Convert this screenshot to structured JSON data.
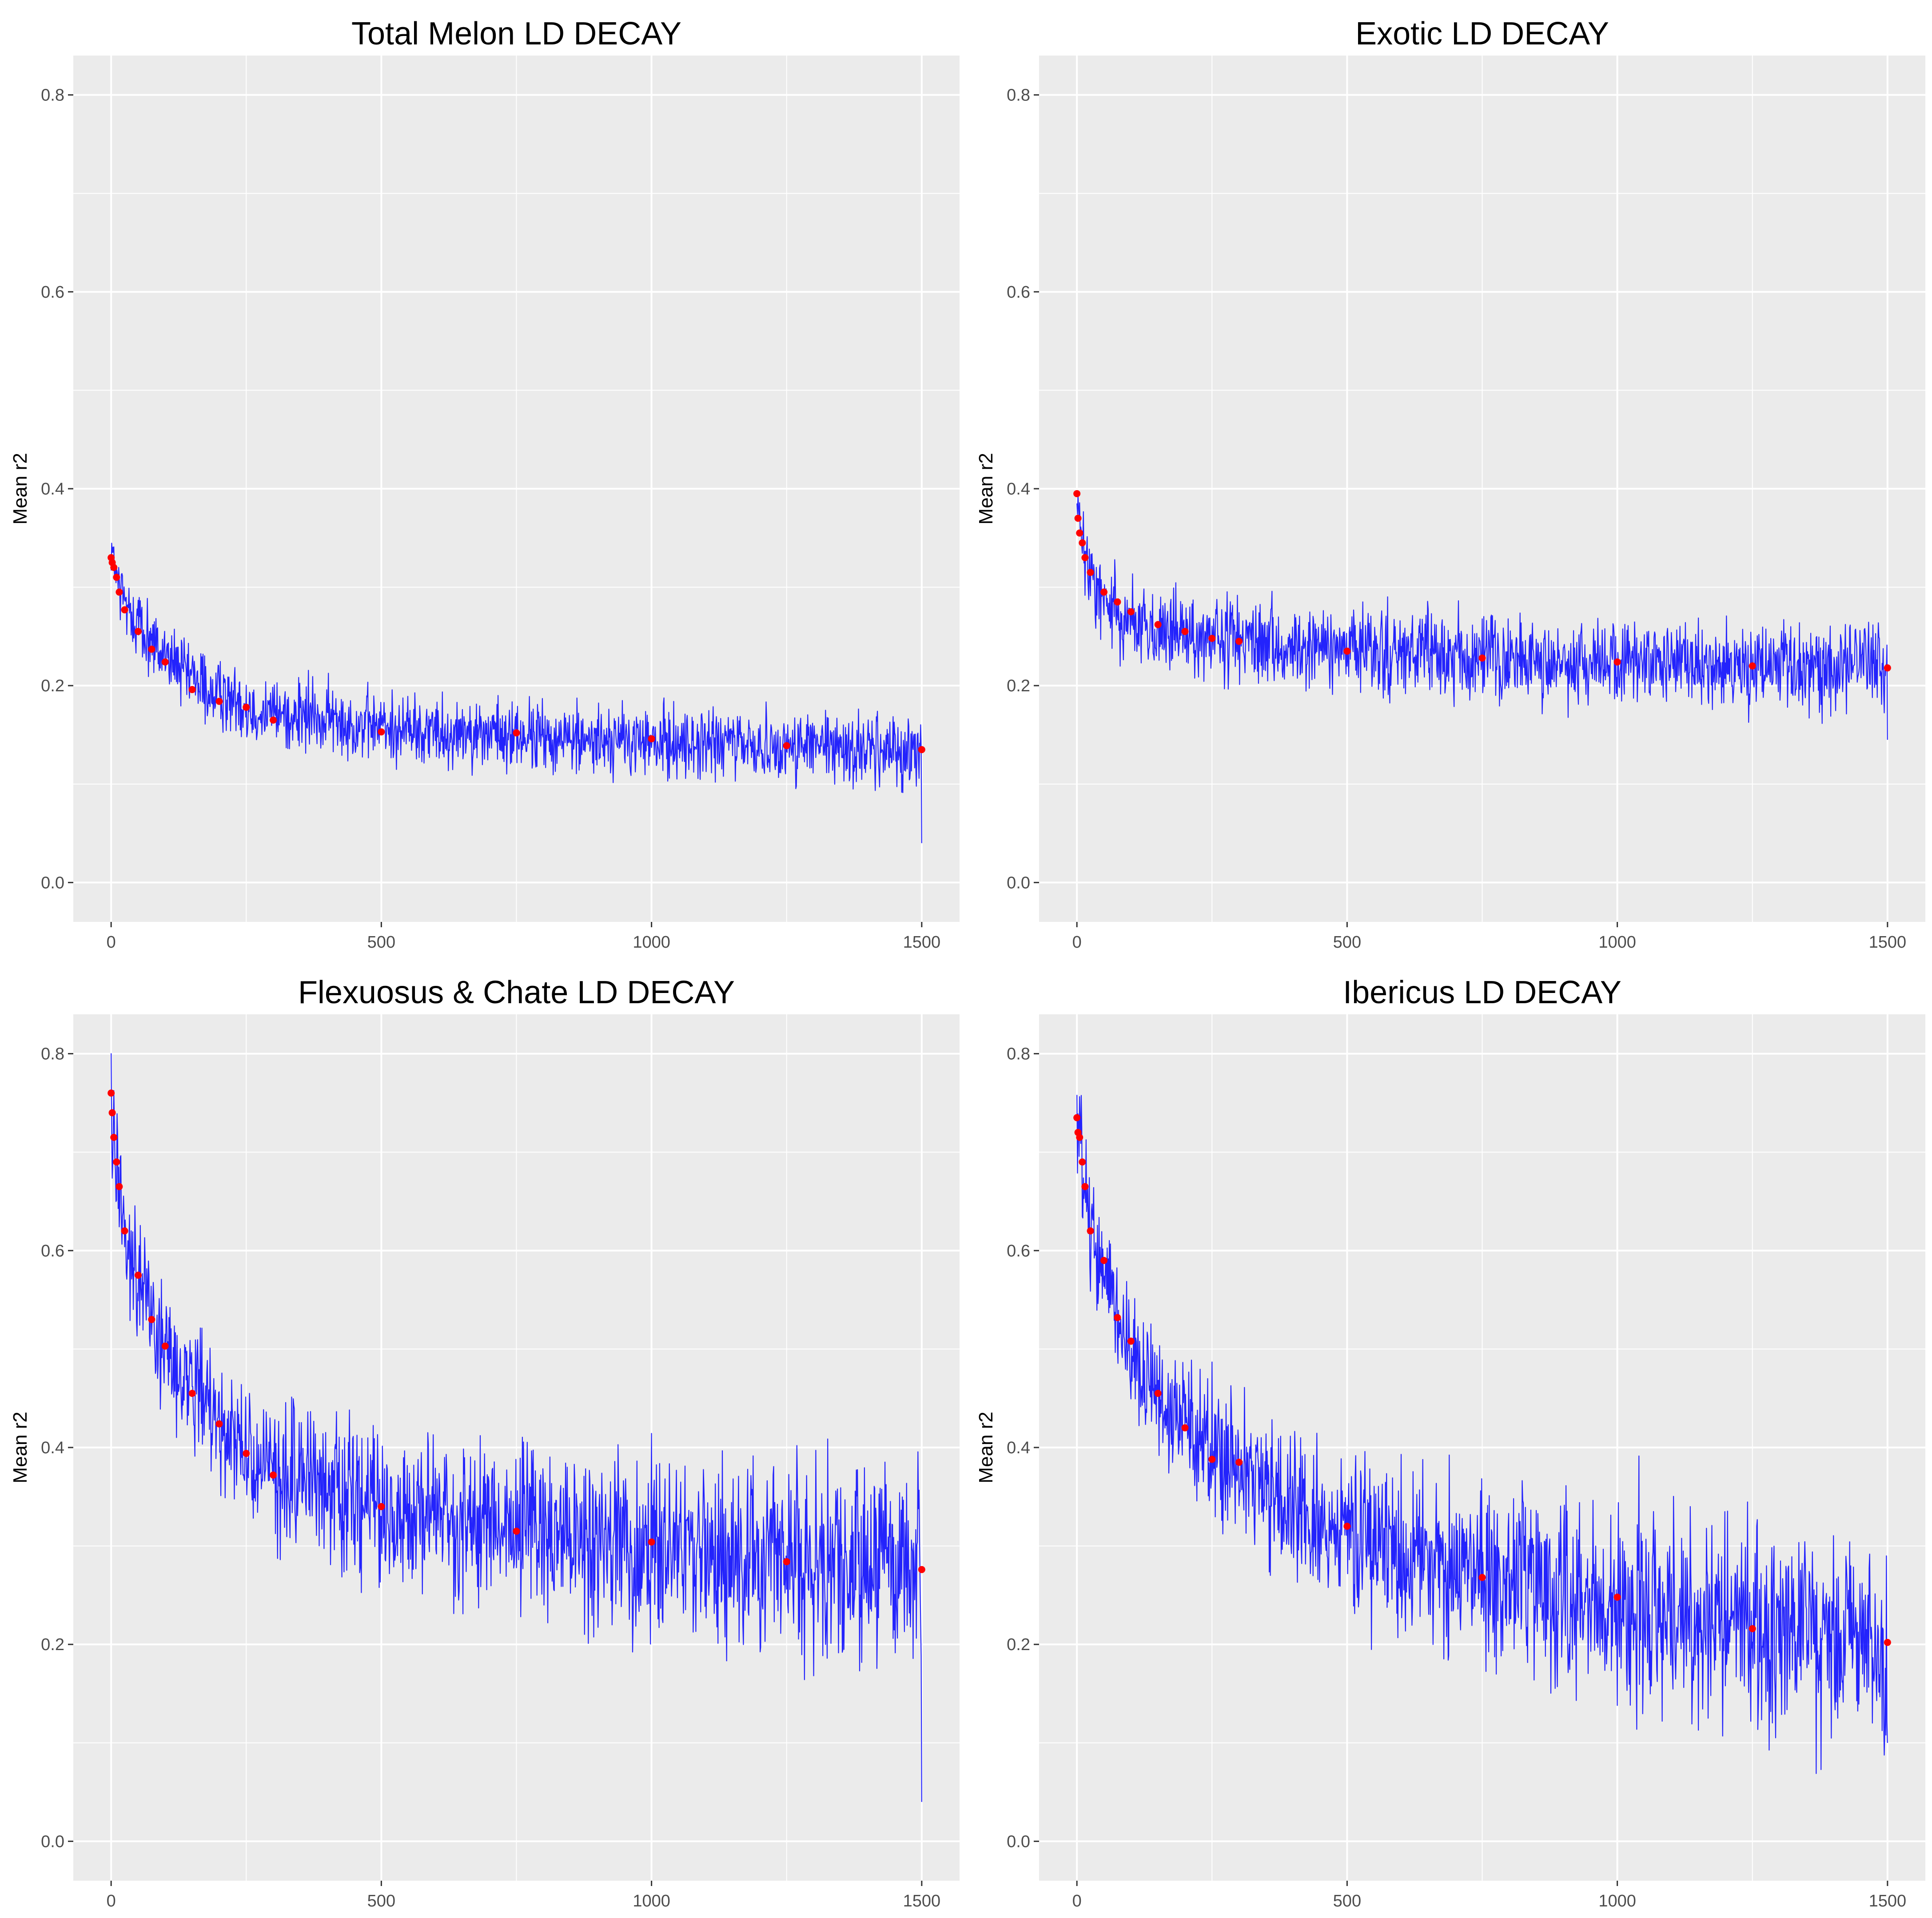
{
  "chart_data": [
    {
      "type": "line",
      "title": "Total Melon LD DECAY",
      "xlabel": "",
      "ylabel": "Mean r2",
      "xlim": [
        -70,
        1570
      ],
      "ylim": [
        -0.04,
        0.84
      ],
      "x_ticks": [
        "0",
        "500",
        "1000",
        "1500"
      ],
      "y_ticks": [
        "0.0",
        "0.2",
        "0.4",
        "0.6",
        "0.8"
      ],
      "grid": true,
      "legend": "none",
      "colors": {
        "line": "#0000ff",
        "points": "#ff0000",
        "panel_bg": "#ebebeb",
        "grid": "#ffffff"
      },
      "series": [
        {
          "values_trend": {
            "x": [
              0,
              5,
              10,
              25,
              50,
              100,
              150,
              200,
              300,
              500,
              750,
              1000,
              1250,
              1500
            ],
            "y": [
              0.35,
              0.32,
              0.305,
              0.285,
              0.262,
              0.228,
              0.205,
              0.19,
              0.172,
              0.158,
              0.148,
              0.142,
              0.138,
              0.134
            ]
          },
          "noise_amplitude": [
            [
              0,
              0.018
            ],
            [
              1500,
              0.018
            ]
          ],
          "end_drop": 0.04
        },
        {
          "points": {
            "x": [
              0,
              2,
              5,
              10,
              15,
              25,
              50,
              75,
              100,
              150,
              200,
              250,
              300,
              500,
              750,
              1000,
              1250,
              1500
            ],
            "y": [
              0.33,
              0.325,
              0.32,
              0.31,
              0.295,
              0.277,
              0.255,
              0.237,
              0.224,
              0.196,
              0.184,
              0.178,
              0.165,
              0.153,
              0.152,
              0.146,
              0.139,
              0.135
            ]
          }
        }
      ]
    },
    {
      "type": "line",
      "title": "Exotic LD DECAY",
      "xlabel": "",
      "ylabel": "Mean r2",
      "xlim": [
        -70,
        1570
      ],
      "ylim": [
        -0.04,
        0.84
      ],
      "x_ticks": [
        "0",
        "500",
        "1000",
        "1500"
      ],
      "y_ticks": [
        "0.0",
        "0.2",
        "0.4",
        "0.6",
        "0.8"
      ],
      "grid": true,
      "legend": "none",
      "colors": {
        "line": "#0000ff",
        "points": "#ff0000",
        "panel_bg": "#ebebeb",
        "grid": "#ffffff"
      },
      "series": [
        {
          "values_trend": {
            "x": [
              0,
              5,
              10,
              25,
              50,
              100,
              150,
              200,
              300,
              500,
              750,
              1000,
              1250,
              1500
            ],
            "y": [
              0.39,
              0.36,
              0.34,
              0.31,
              0.285,
              0.265,
              0.255,
              0.248,
              0.242,
              0.235,
              0.228,
              0.224,
              0.22,
              0.217
            ]
          },
          "noise_amplitude": [
            [
              0,
              0.02
            ],
            [
              1500,
              0.022
            ]
          ],
          "end_drop": 0.145
        },
        {
          "points": {
            "x": [
              0,
              2,
              5,
              10,
              15,
              25,
              50,
              75,
              100,
              150,
              200,
              250,
              300,
              500,
              750,
              1000,
              1250,
              1500
            ],
            "y": [
              0.395,
              0.37,
              0.355,
              0.345,
              0.33,
              0.315,
              0.295,
              0.285,
              0.275,
              0.262,
              0.255,
              0.248,
              0.245,
              0.235,
              0.228,
              0.224,
              0.22,
              0.218
            ]
          }
        }
      ]
    },
    {
      "type": "line",
      "title": "Flexuosus & Chate LD DECAY",
      "xlabel": "",
      "ylabel": "Mean r2",
      "xlim": [
        -70,
        1570
      ],
      "ylim": [
        -0.04,
        0.84
      ],
      "x_ticks": [
        "0",
        "500",
        "1000",
        "1500"
      ],
      "y_ticks": [
        "0.0",
        "0.2",
        "0.4",
        "0.6",
        "0.8"
      ],
      "grid": true,
      "legend": "none",
      "colors": {
        "line": "#0000ff",
        "points": "#ff0000",
        "panel_bg": "#ebebeb",
        "grid": "#ffffff"
      },
      "series": [
        {
          "values_trend": {
            "x": [
              0,
              5,
              10,
              25,
              50,
              100,
              150,
              200,
              300,
              500,
              750,
              1000,
              1250,
              1500
            ],
            "y": [
              0.76,
              0.72,
              0.69,
              0.63,
              0.57,
              0.5,
              0.455,
              0.42,
              0.375,
              0.34,
              0.315,
              0.3,
              0.285,
              0.272
            ]
          },
          "noise_amplitude": [
            [
              0,
              0.03
            ],
            [
              1500,
              0.05
            ]
          ],
          "end_drop": 0.04
        },
        {
          "points": {
            "x": [
              0,
              2,
              5,
              10,
              15,
              25,
              50,
              75,
              100,
              150,
              200,
              250,
              300,
              500,
              750,
              1000,
              1250,
              1500
            ],
            "y": [
              0.76,
              0.74,
              0.715,
              0.69,
              0.665,
              0.62,
              0.575,
              0.53,
              0.503,
              0.455,
              0.424,
              0.394,
              0.372,
              0.34,
              0.315,
              0.304,
              0.284,
              0.276
            ]
          }
        }
      ]
    },
    {
      "type": "line",
      "title": "Ibericus LD DECAY",
      "xlabel": "",
      "ylabel": "Mean r2",
      "xlim": [
        -70,
        1570
      ],
      "ylim": [
        -0.04,
        0.84
      ],
      "x_ticks": [
        "0",
        "500",
        "1000",
        "1500"
      ],
      "y_ticks": [
        "0.0",
        "0.2",
        "0.4",
        "0.6",
        "0.8"
      ],
      "grid": true,
      "legend": "none",
      "colors": {
        "line": "#0000ff",
        "points": "#ff0000",
        "panel_bg": "#ebebeb",
        "grid": "#ffffff"
      },
      "series": [
        {
          "values_trend": {
            "x": [
              0,
              5,
              10,
              25,
              50,
              100,
              150,
              200,
              300,
              500,
              750,
              1000,
              1250,
              1500
            ],
            "y": [
              0.73,
              0.71,
              0.68,
              0.625,
              0.58,
              0.5,
              0.45,
              0.42,
              0.375,
              0.31,
              0.265,
              0.24,
              0.215,
              0.2
            ]
          },
          "noise_amplitude": [
            [
              0,
              0.03
            ],
            [
              1500,
              0.055
            ]
          ],
          "end_drop": 0.1
        },
        {
          "points": {
            "x": [
              0,
              2,
              5,
              10,
              15,
              25,
              50,
              75,
              100,
              150,
              200,
              250,
              300,
              500,
              750,
              1000,
              1250,
              1500
            ],
            "y": [
              0.735,
              0.72,
              0.715,
              0.69,
              0.665,
              0.62,
              0.59,
              0.532,
              0.508,
              0.455,
              0.42,
              0.388,
              0.385,
              0.32,
              0.268,
              0.248,
              0.216,
              0.202
            ]
          }
        }
      ]
    }
  ]
}
